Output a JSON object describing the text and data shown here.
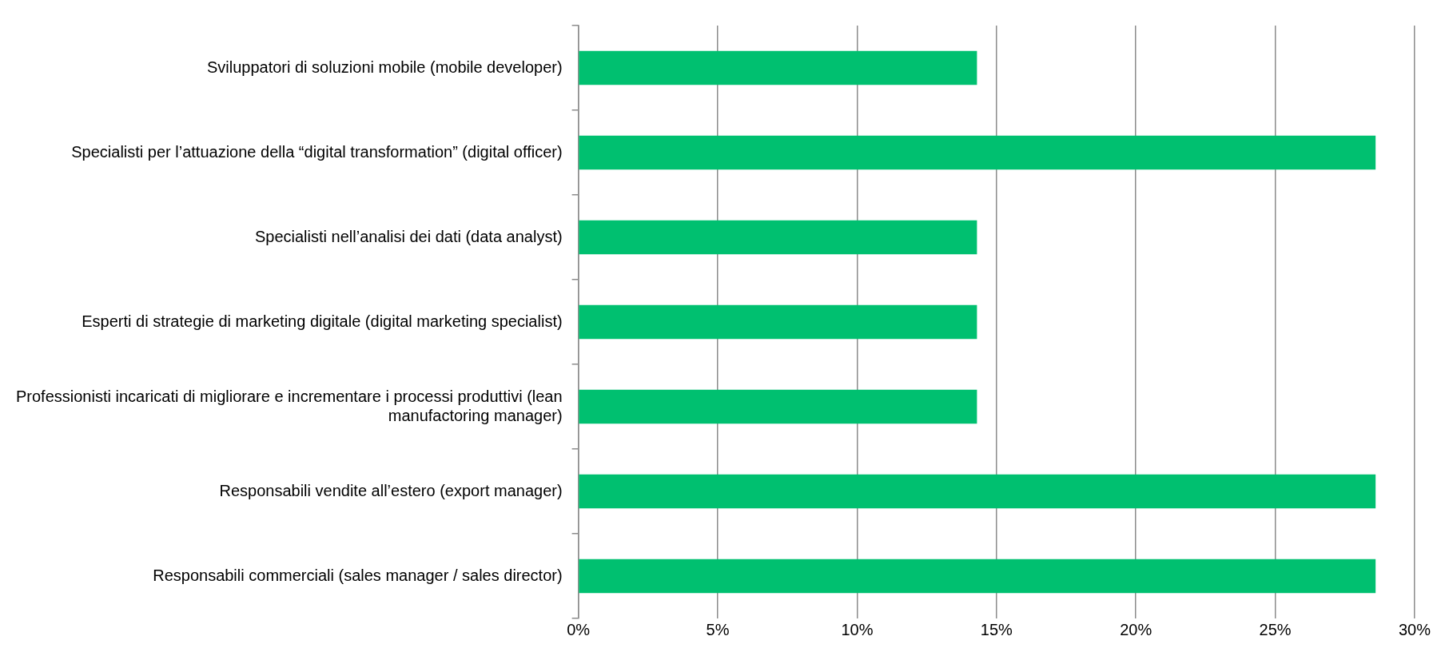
{
  "chart_data": {
    "type": "bar",
    "orientation": "horizontal",
    "categories": [
      "Sviluppatori di soluzioni mobile (mobile developer)",
      "Specialisti per l’attuazione della “digital transformation” (digital officer)",
      "Specialisti nell’analisi dei dati (data analyst)",
      "Esperti di strategie di marketing digitale (digital marketing specialist)",
      "Professionisti incaricati di migliorare e incrementare i processi produttivi (lean manufactoring manager)",
      "Responsabili vendite all’estero (export manager)",
      "Responsabili commerciali (sales manager / sales director)"
    ],
    "values": [
      14.3,
      28.6,
      14.3,
      14.3,
      14.3,
      28.6,
      28.6
    ],
    "color": "#00c070",
    "xlim": [
      0,
      30
    ],
    "xticks": [
      {
        "value": 0,
        "label": "0%"
      },
      {
        "value": 5,
        "label": "5%"
      },
      {
        "value": 10,
        "label": "10%"
      },
      {
        "value": 15,
        "label": "15%"
      },
      {
        "value": 20,
        "label": "20%"
      },
      {
        "value": 25,
        "label": "25%"
      },
      {
        "value": 30,
        "label": "30%"
      }
    ],
    "grid": "x",
    "legend": false
  }
}
